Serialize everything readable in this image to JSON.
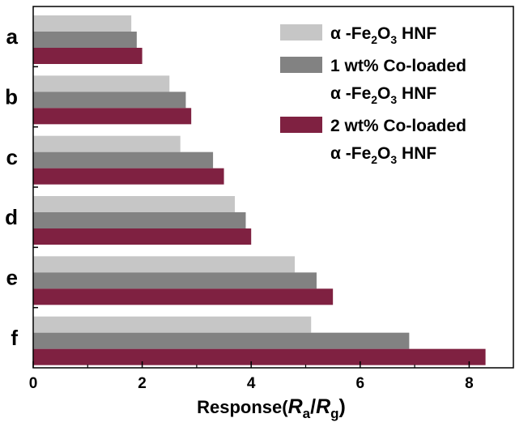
{
  "chart_data": {
    "type": "bar",
    "orientation": "horizontal",
    "categories": [
      "a",
      "b",
      "c",
      "d",
      "e",
      "f"
    ],
    "series": [
      {
        "name": "α -Fe2O3 HNF",
        "legend": [
          "α -Fe",
          "2",
          "O",
          "3",
          " HNF"
        ],
        "color": "#c6c6c6",
        "values": [
          1.8,
          2.5,
          2.7,
          3.7,
          4.8,
          5.1
        ]
      },
      {
        "name": "1 wt% Co-loaded α -Fe2O3 HNF",
        "legend_line1": "1 wt% Co-loaded",
        "legend": [
          "α -Fe",
          "2",
          "O",
          "3",
          " HNF"
        ],
        "color": "#828282",
        "values": [
          1.9,
          2.8,
          3.3,
          3.9,
          5.2,
          6.9
        ]
      },
      {
        "name": "2 wt% Co-loaded α -Fe2O3 HNF",
        "legend_line1": "2 wt% Co-loaded",
        "legend": [
          "α -Fe",
          "2",
          "O",
          "3",
          " HNF"
        ],
        "color": "#7f2141",
        "values": [
          2.0,
          2.9,
          3.5,
          4.0,
          5.5,
          8.3
        ]
      }
    ],
    "xlim": [
      0,
      8.9
    ],
    "xticks": [
      "0",
      "2",
      "4",
      "6",
      "8"
    ],
    "xlabel": {
      "main": "Response(",
      "ra": "R",
      "ra_sub": "a",
      "slash": "/",
      "rg": "R",
      "rg_sub": "g",
      "close": ")"
    },
    "legend_position": "top-right",
    "grid": false
  }
}
